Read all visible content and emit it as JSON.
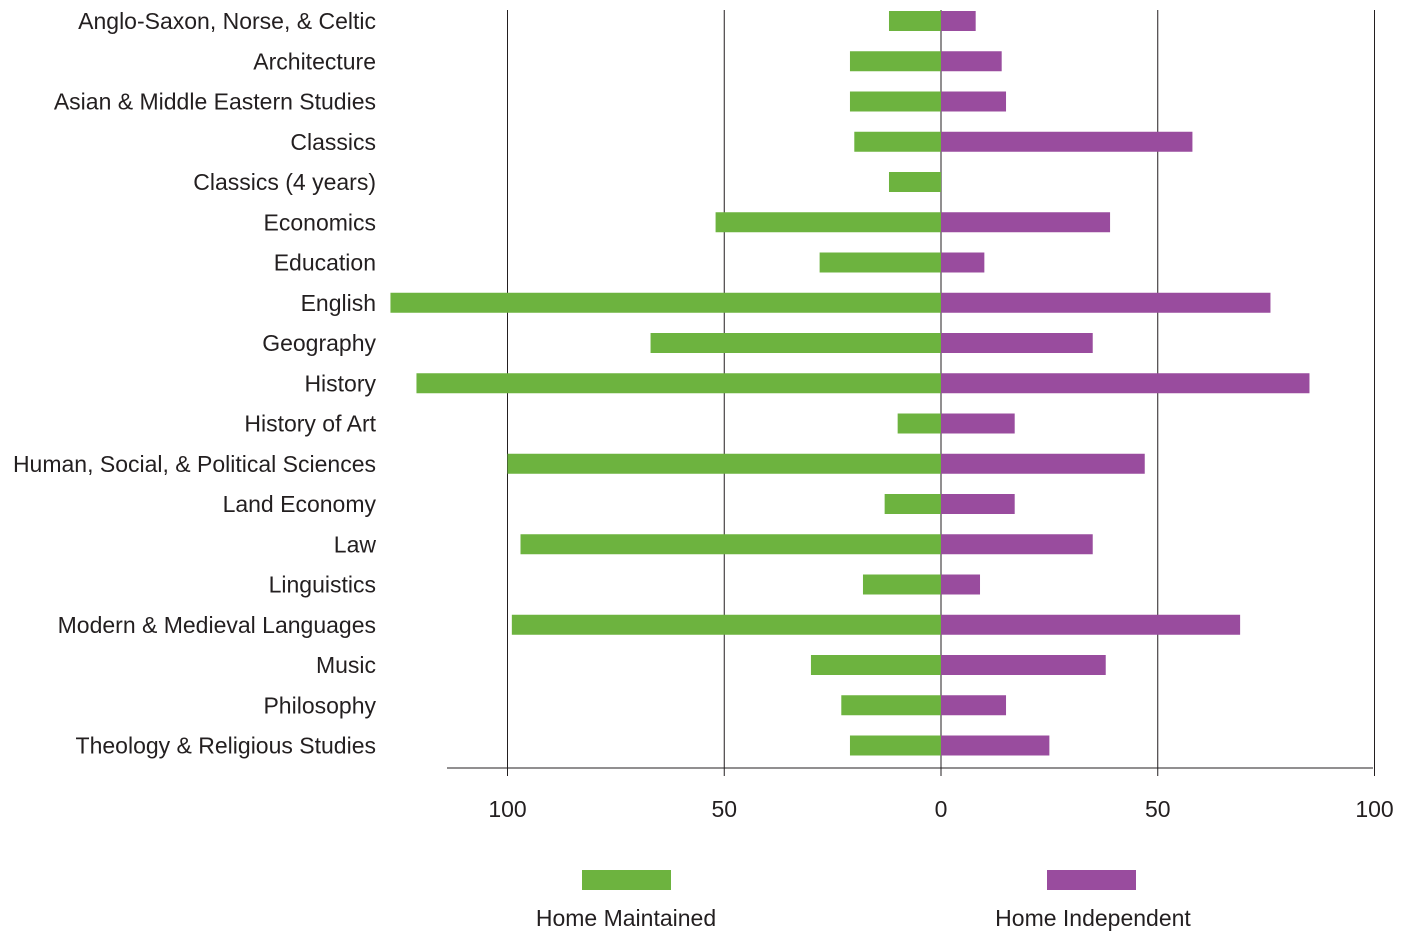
{
  "chart_data": {
    "type": "bar",
    "orientation": "horizontal-diverging",
    "categories": [
      "Anglo-Saxon, Norse, & Celtic",
      "Architecture",
      "Asian & Middle Eastern Studies",
      "Classics",
      "Classics (4 years)",
      "Economics",
      "Education",
      "English",
      "Geography",
      "History",
      "History of Art",
      "Human, Social, & Political Sciences",
      "Land Economy",
      "Law",
      "Linguistics",
      "Modern & Medieval Languages",
      "Music",
      "Philosophy",
      "Theology & Religious Studies"
    ],
    "series": [
      {
        "name": "Home Maintained",
        "color": "#6db33f",
        "side": "left",
        "values": [
          12,
          21,
          21,
          20,
          12,
          52,
          28,
          127,
          67,
          121,
          10,
          100,
          13,
          97,
          18,
          99,
          30,
          23,
          21
        ]
      },
      {
        "name": "Home Independent",
        "color": "#994c9e",
        "side": "right",
        "values": [
          8,
          14,
          15,
          58,
          0,
          39,
          10,
          76,
          35,
          85,
          17,
          47,
          17,
          35,
          9,
          69,
          38,
          15,
          25
        ]
      }
    ],
    "x_ticks": [
      "100",
      "50",
      "0",
      "50",
      "100"
    ],
    "xlim": [
      -100,
      100
    ],
    "grid": "vertical",
    "legend_position": "bottom"
  }
}
